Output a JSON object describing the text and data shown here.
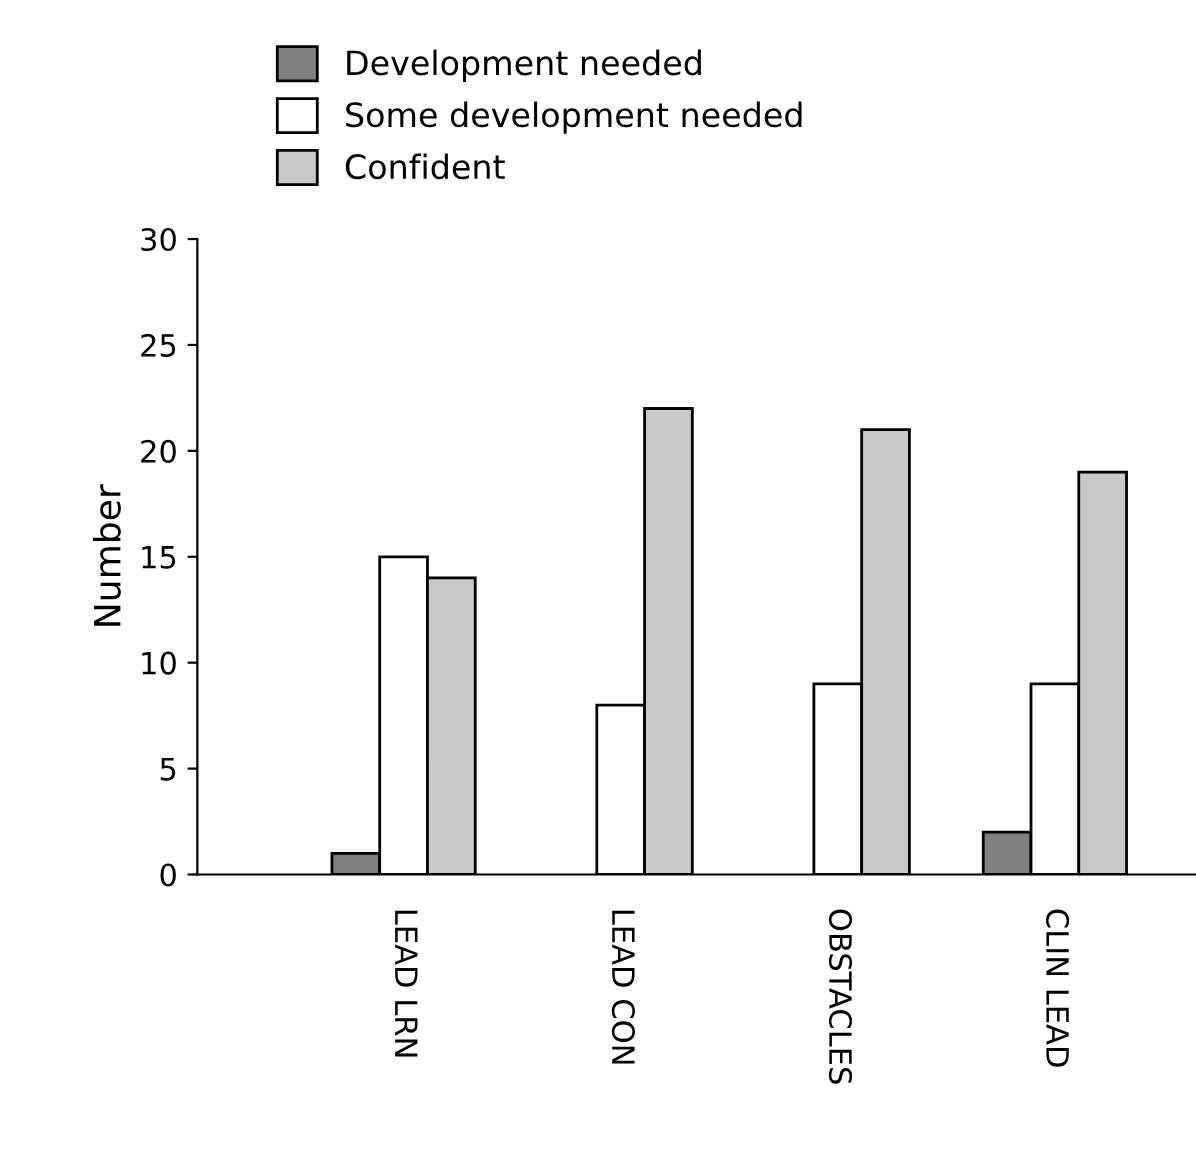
{
  "chart_data": {
    "type": "bar",
    "ylabel": "Number",
    "categories": [
      "LEAD LRN",
      "LEAD CON",
      "OBSTACLES",
      "CLIN LEAD"
    ],
    "series": [
      {
        "name": "Development needed",
        "color": "#808080",
        "values": [
          1,
          0,
          0,
          2
        ]
      },
      {
        "name": "Some development needed",
        "color": "#ffffff",
        "values": [
          15,
          8,
          9,
          9
        ]
      },
      {
        "name": "Confident",
        "color": "#c8c8c8",
        "values": [
          14,
          22,
          21,
          19
        ]
      }
    ],
    "ylim": [
      0,
      30
    ],
    "yticks": [
      0,
      5,
      10,
      15,
      20,
      25,
      30
    ],
    "grid": false,
    "legend": "top"
  }
}
